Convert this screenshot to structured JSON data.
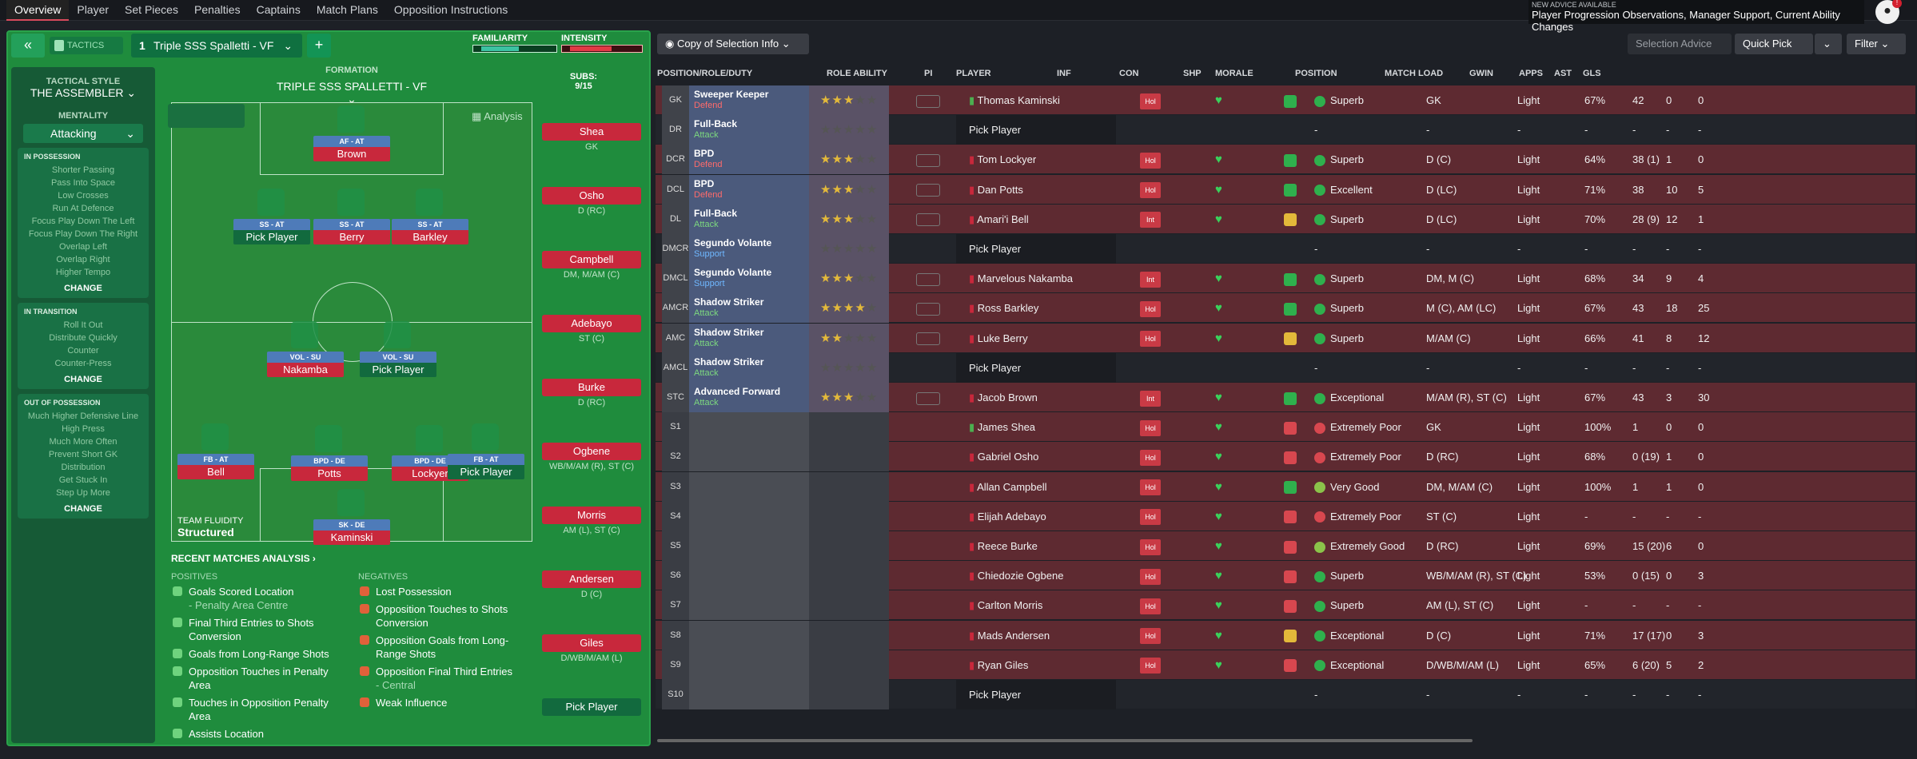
{
  "tabs": [
    "Overview",
    "Player",
    "Set Pieces",
    "Penalties",
    "Captains",
    "Match Plans",
    "Opposition Instructions"
  ],
  "advice": {
    "line1": "NEW ADVICE AVAILABLE",
    "line2": "Player Progression Observations, Manager Support, Current Ability Changes"
  },
  "tactics": {
    "label": "TACTICS",
    "slot": "1",
    "name": "Triple SSS Spalletti - VF",
    "familiarity": "FAMILIARITY",
    "intensity": "INTENSITY",
    "fam_level": 0.55,
    "int_level": 0.6
  },
  "side": {
    "style_h": "TACTICAL STYLE",
    "style": "THE ASSEMBLER",
    "mentality_h": "MENTALITY",
    "mentality": "Attacking",
    "poss_h": "IN POSSESSION",
    "poss": [
      "Shorter Passing",
      "Pass Into Space",
      "Low Crosses",
      "Run At Defence",
      "Focus Play Down The Left",
      "Focus Play Down The Right",
      "Overlap Left",
      "Overlap Right",
      "Higher Tempo"
    ],
    "trans_h": "IN TRANSITION",
    "trans": [
      "Roll It Out",
      "Distribute Quickly",
      "Counter",
      "Counter-Press"
    ],
    "oop_h": "OUT OF POSSESSION",
    "oop": [
      "Much Higher Defensive Line",
      "High Press",
      "Much More Often",
      "Prevent Short GK",
      "Distribution",
      "Get Stuck In",
      "Step Up More"
    ],
    "change": "CHANGE"
  },
  "formation": {
    "h": "FORMATION",
    "name": "TRIPLE SSS SPALLETTI - VF",
    "subs_h": "SUBS:",
    "subs": "9/15",
    "analysis": "Analysis",
    "fluidity_h": "TEAM FLUIDITY",
    "fluidity": "Structured"
  },
  "pitch": [
    {
      "role": "AF - AT",
      "name": "Brown"
    },
    {
      "role": "SS - AT",
      "name": "Pick Player"
    },
    {
      "role": "SS - AT",
      "name": "Berry"
    },
    {
      "role": "SS - AT",
      "name": "Barkley"
    },
    {
      "role": "VOL - SU",
      "name": "Nakamba"
    },
    {
      "role": "VOL - SU",
      "name": "Pick Player"
    },
    {
      "role": "FB - AT",
      "name": "Bell"
    },
    {
      "role": "BPD - DE",
      "name": "Potts"
    },
    {
      "role": "BPD - DE",
      "name": "Lockyer"
    },
    {
      "role": "FB - AT",
      "name": "Pick Player"
    },
    {
      "role": "SK - DE",
      "name": "Kaminski"
    }
  ],
  "subs": [
    {
      "name": "Shea",
      "pos": "GK"
    },
    {
      "name": "Osho",
      "pos": "D (RC)"
    },
    {
      "name": "Campbell",
      "pos": "DM, M/AM (C)"
    },
    {
      "name": "Adebayo",
      "pos": "ST (C)"
    },
    {
      "name": "Burke",
      "pos": "D (RC)"
    },
    {
      "name": "Ogbene",
      "pos": "WB/M/AM (R), ST (C)"
    },
    {
      "name": "Morris",
      "pos": "AM (L), ST (C)"
    },
    {
      "name": "Andersen",
      "pos": "D (C)"
    },
    {
      "name": "Giles",
      "pos": "D/WB/M/AM (L)"
    },
    {
      "name": "Pick Player",
      "pos": ""
    }
  ],
  "analysis": {
    "title": "RECENT MATCHES ANALYSIS",
    "pos_h": "POSITIVES",
    "neg_h": "NEGATIVES",
    "positives": [
      [
        "Goals Scored Location",
        "- Penalty Area Centre"
      ],
      [
        "Final Third Entries to Shots Conversion",
        ""
      ],
      [
        "Goals from Long-Range Shots",
        ""
      ],
      [
        "Opposition Touches in Penalty Area",
        ""
      ],
      [
        "Touches in Opposition Penalty Area",
        ""
      ],
      [
        "Assists Location",
        ""
      ]
    ],
    "negatives": [
      [
        "Lost Possession",
        ""
      ],
      [
        "Opposition Touches to Shots Conversion",
        ""
      ],
      [
        "Opposition Goals from Long-Range Shots",
        ""
      ],
      [
        "Opposition Final Third Entries",
        "- Central"
      ],
      [
        "Weak Influence",
        ""
      ]
    ]
  },
  "controls": {
    "copy": "Copy of Selection Info",
    "advice": "Selection Advice",
    "quick": "Quick Pick",
    "filter": "Filter"
  },
  "headers": [
    "POSITION/ROLE/DUTY",
    "ROLE ABILITY",
    "PI",
    "PLAYER",
    "INF",
    "CON",
    "SHP",
    "MORALE",
    "POSITION",
    "MATCH LOAD",
    "GWIN",
    "APPS",
    "AST",
    "GLS"
  ],
  "rows": [
    {
      "pos": "GK",
      "role": "Sweeper Keeper",
      "duty": "Defend",
      "stars": 2.5,
      "player": "Thomas Kaminski",
      "inf": "Hol",
      "shp": "up",
      "morale": "Superb",
      "position": "GK",
      "load": "Light",
      "gwin": "67%",
      "apps": "42",
      "ast": "0",
      "gls": "0"
    },
    {
      "pos": "DR",
      "role": "Full-Back",
      "duty": "Attack",
      "stars": 0,
      "player": "Pick Player",
      "inf": "",
      "shp": "",
      "morale": "-",
      "position": "-",
      "load": "-",
      "gwin": "-",
      "apps": "-",
      "ast": "-",
      "gls": "-"
    },
    {
      "pos": "DCR",
      "role": "BPD",
      "duty": "Defend",
      "stars": 3,
      "player": "Tom Lockyer",
      "inf": "Hol",
      "shp": "up",
      "morale": "Superb",
      "position": "D (C)",
      "load": "Light",
      "gwin": "64%",
      "apps": "38 (1)",
      "ast": "1",
      "gls": "0"
    },
    {
      "pos": "DCL",
      "role": "BPD",
      "duty": "Defend",
      "stars": 2.5,
      "player": "Dan Potts",
      "inf": "Hol",
      "shp": "up",
      "morale": "Excellent",
      "position": "D (LC)",
      "load": "Light",
      "gwin": "71%",
      "apps": "38",
      "ast": "10",
      "gls": "5"
    },
    {
      "pos": "DL",
      "role": "Full-Back",
      "duty": "Attack",
      "stars": 2.5,
      "player": "Amari'i Bell",
      "inf": "Int",
      "shp": "mid",
      "morale": "Superb",
      "position": "D (LC)",
      "load": "Light",
      "gwin": "70%",
      "apps": "28 (9)",
      "ast": "12",
      "gls": "1"
    },
    {
      "pos": "DMCR",
      "role": "Segundo Volante",
      "duty": "Support",
      "stars": 0,
      "player": "Pick Player",
      "inf": "",
      "shp": "",
      "morale": "-",
      "position": "-",
      "load": "-",
      "gwin": "-",
      "apps": "-",
      "ast": "-",
      "gls": "-"
    },
    {
      "pos": "DMCL",
      "role": "Segundo Volante",
      "duty": "Support",
      "stars": 3,
      "player": "Marvelous Nakamba",
      "inf": "Int",
      "shp": "up",
      "morale": "Superb",
      "position": "DM, M (C)",
      "load": "Light",
      "gwin": "68%",
      "apps": "34",
      "ast": "9",
      "gls": "4"
    },
    {
      "pos": "AMCR",
      "role": "Shadow Striker",
      "duty": "Attack",
      "stars": 4,
      "player": "Ross Barkley",
      "inf": "Hol",
      "shp": "up",
      "morale": "Superb",
      "position": "M (C), AM (LC)",
      "load": "Light",
      "gwin": "67%",
      "apps": "43",
      "ast": "18",
      "gls": "25"
    },
    {
      "pos": "AMC",
      "role": "Shadow Striker",
      "duty": "Attack",
      "stars": 2,
      "player": "Luke Berry",
      "inf": "Hol",
      "shp": "mid",
      "morale": "Superb",
      "position": "M/AM (C)",
      "load": "Light",
      "gwin": "66%",
      "apps": "41",
      "ast": "8",
      "gls": "12"
    },
    {
      "pos": "AMCL",
      "role": "Shadow Striker",
      "duty": "Attack",
      "stars": 0,
      "player": "Pick Player",
      "inf": "",
      "shp": "",
      "morale": "-",
      "position": "-",
      "load": "-",
      "gwin": "-",
      "apps": "-",
      "ast": "-",
      "gls": "-"
    },
    {
      "pos": "STC",
      "role": "Advanced Forward",
      "duty": "Attack",
      "stars": 3,
      "player": "Jacob Brown",
      "inf": "Int",
      "shp": "up",
      "morale": "Exceptional",
      "position": "M/AM (R), ST (C)",
      "load": "Light",
      "gwin": "67%",
      "apps": "43",
      "ast": "3",
      "gls": "30"
    },
    {
      "pos": "S1",
      "role": "",
      "duty": "",
      "stars": -1,
      "player": "James Shea",
      "inf": "Hol",
      "shp": "down",
      "morale": "Extremely Poor",
      "position": "GK",
      "load": "Light",
      "gwin": "100%",
      "apps": "1",
      "ast": "0",
      "gls": "0"
    },
    {
      "pos": "S2",
      "role": "",
      "duty": "",
      "stars": -1,
      "player": "Gabriel Osho",
      "inf": "Hol",
      "shp": "down",
      "morale": "Extremely Poor",
      "position": "D (RC)",
      "load": "Light",
      "gwin": "68%",
      "apps": "0 (19)",
      "ast": "1",
      "gls": "0"
    },
    {
      "pos": "S3",
      "role": "",
      "duty": "",
      "stars": -1,
      "player": "Allan Campbell",
      "inf": "Hol",
      "shp": "up",
      "morale": "Very Good",
      "position": "DM, M/AM (C)",
      "load": "Light",
      "gwin": "100%",
      "apps": "1",
      "ast": "1",
      "gls": "0"
    },
    {
      "pos": "S4",
      "role": "",
      "duty": "",
      "stars": -1,
      "player": "Elijah Adebayo",
      "inf": "Hol",
      "shp": "down",
      "morale": "Extremely Poor",
      "position": "ST (C)",
      "load": "Light",
      "gwin": "-",
      "apps": "-",
      "ast": "-",
      "gls": "-"
    },
    {
      "pos": "S5",
      "role": "",
      "duty": "",
      "stars": -1,
      "player": "Reece Burke",
      "inf": "Hol",
      "shp": "down",
      "morale": "Extremely Good",
      "position": "D (RC)",
      "load": "Light",
      "gwin": "69%",
      "apps": "15 (20)",
      "ast": "6",
      "gls": "0"
    },
    {
      "pos": "S6",
      "role": "",
      "duty": "",
      "stars": -1,
      "player": "Chiedozie Ogbene",
      "inf": "Hol",
      "shp": "down",
      "morale": "Superb",
      "position": "WB/M/AM (R), ST (C)",
      "load": "Light",
      "gwin": "53%",
      "apps": "0 (15)",
      "ast": "0",
      "gls": "3"
    },
    {
      "pos": "S7",
      "role": "",
      "duty": "",
      "stars": -1,
      "player": "Carlton Morris",
      "inf": "Hol",
      "shp": "down",
      "morale": "Superb",
      "position": "AM (L), ST (C)",
      "load": "Light",
      "gwin": "-",
      "apps": "-",
      "ast": "-",
      "gls": "-"
    },
    {
      "pos": "S8",
      "role": "",
      "duty": "",
      "stars": -1,
      "player": "Mads Andersen",
      "inf": "Hol",
      "shp": "mid",
      "morale": "Exceptional",
      "position": "D (C)",
      "load": "Light",
      "gwin": "71%",
      "apps": "17 (17)",
      "ast": "0",
      "gls": "3"
    },
    {
      "pos": "S9",
      "role": "",
      "duty": "",
      "stars": -1,
      "player": "Ryan Giles",
      "inf": "Hol",
      "shp": "down",
      "morale": "Exceptional",
      "position": "D/WB/M/AM (L)",
      "load": "Light",
      "gwin": "65%",
      "apps": "6 (20)",
      "ast": "5",
      "gls": "2"
    },
    {
      "pos": "S10",
      "role": "",
      "duty": "",
      "stars": -1,
      "player": "Pick Player",
      "inf": "",
      "shp": "",
      "morale": "-",
      "position": "-",
      "load": "-",
      "gwin": "-",
      "apps": "-",
      "ast": "-",
      "gls": "-"
    }
  ],
  "colors": {
    "accent": "#d84a5c",
    "green": "#1f8c3d",
    "row_red": "#5e2a31"
  }
}
